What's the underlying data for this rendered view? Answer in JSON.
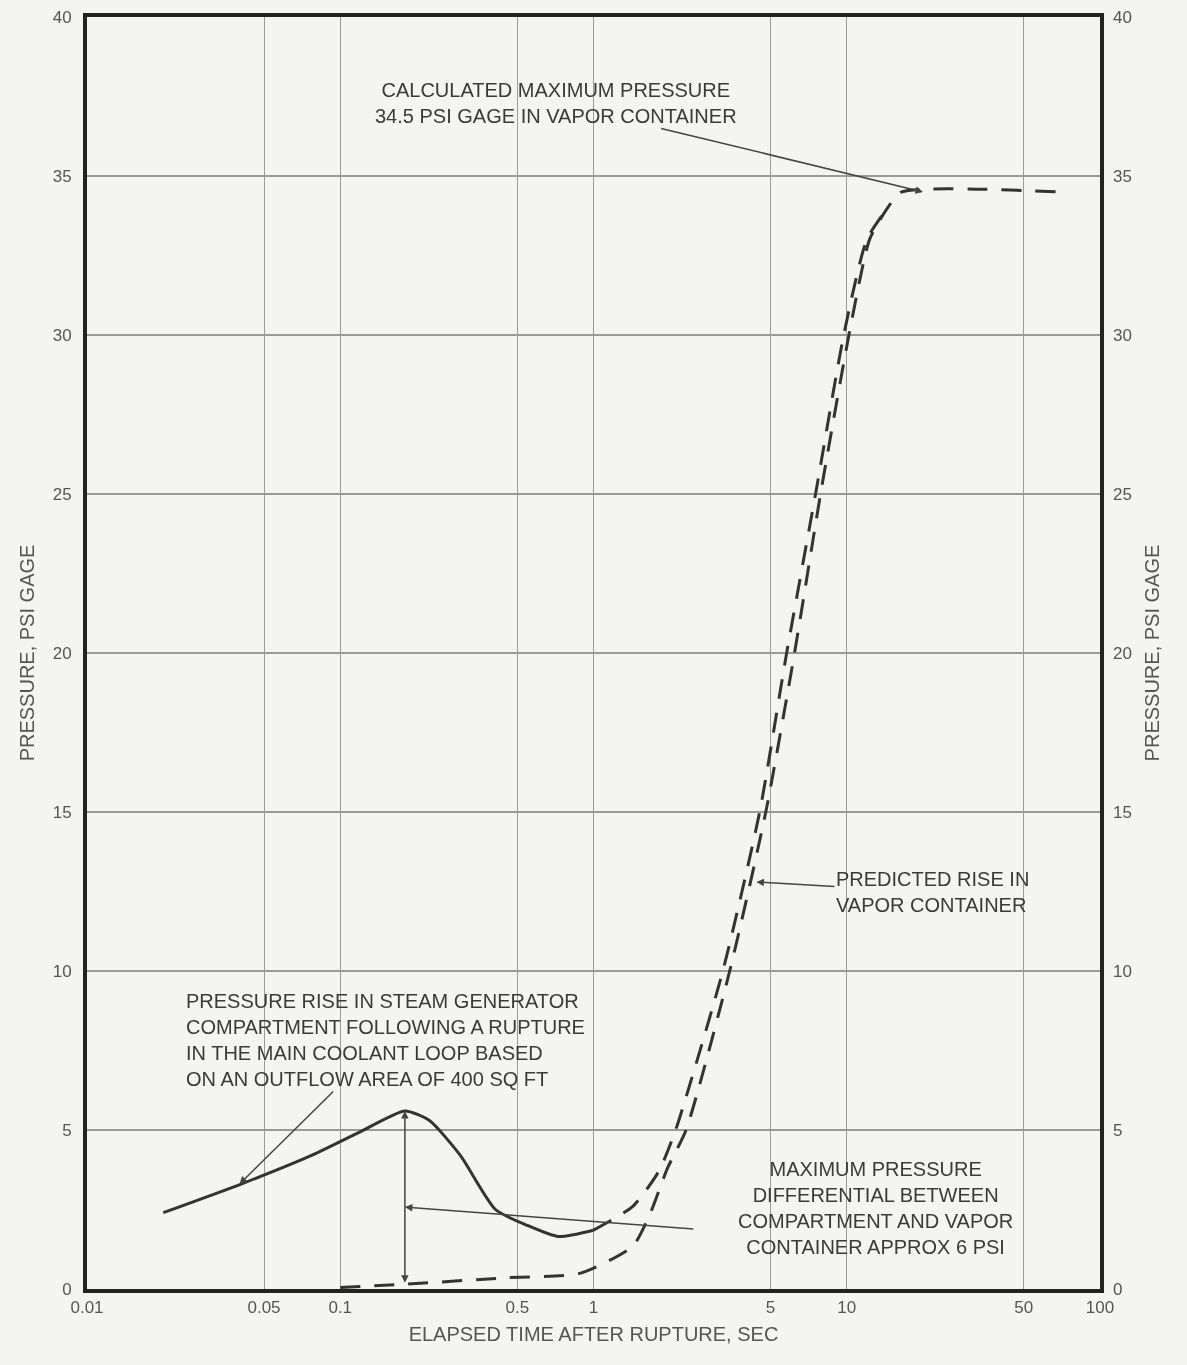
{
  "chart_data": {
    "type": "line",
    "xlabel": "ELAPSED TIME AFTER RUPTURE, SEC",
    "ylabel": "PRESSURE, PSI GAGE",
    "y2label": "PRESSURE, PSI GAGE",
    "log": "x",
    "xlim": [
      0.01,
      100
    ],
    "xticks": [
      0.01,
      0.05,
      0.1,
      0.5,
      1,
      5,
      10,
      50,
      100
    ],
    "ylim": [
      0,
      40
    ],
    "yticks": [
      0,
      5,
      10,
      15,
      20,
      25,
      30,
      35,
      40
    ],
    "y2lim": [
      0,
      40
    ],
    "y2ticks": [
      0,
      5,
      10,
      15,
      20,
      25,
      30,
      35,
      40
    ],
    "grid": true,
    "marker": "none",
    "series": [
      {
        "color": "#333333",
        "line_style": "solid",
        "x": [
          0.02,
          0.0406,
          0.077,
          0.117,
          0.18,
          0.225,
          0.298,
          0.41,
          0.548,
          0.727,
          1.0
        ],
        "values": [
          2.4,
          3.3,
          4.2,
          4.9,
          5.6,
          5.3,
          4.2,
          2.5,
          2.0,
          1.65,
          1.85
        ]
      },
      {
        "color": "#333333",
        "line_style": "dashed",
        "x": [
          1.0,
          1.43,
          1.81,
          2.11,
          3.24,
          4.53,
          5.79,
          7.53,
          9.73,
          12.0,
          14.5
        ],
        "values": [
          1.85,
          2.6,
          3.7,
          5,
          10,
          15,
          20,
          25,
          30,
          33,
          34
        ]
      },
      {
        "color": "#333333",
        "line_style": "dashed",
        "x": [
          0.1,
          0.18,
          0.445,
          0.89,
          1.43,
          1.66,
          1.96,
          2.32,
          3.45,
          4.79,
          6.22,
          7.88,
          10.2,
          12.3,
          14.5,
          16.5,
          68
        ],
        "values": [
          0.05,
          0.15,
          0.35,
          0.5,
          1.35,
          2.3,
          3.8,
          5,
          10,
          15,
          20,
          25,
          30,
          33,
          34,
          34.5,
          34.5
        ]
      }
    ],
    "annotations": [
      {
        "text": "CALCULATED MAXIMUM PRESSURE\n34.5 PSI GAGE IN VAPOR CONTAINER",
        "x": 20,
        "y": 34.5
      },
      {
        "text": "PREDICTED RISE IN\nVAPOR CONTAINER",
        "x": 4.4,
        "y": 12.8
      },
      {
        "text": "PRESSURE RISE IN STEAM GENERATOR\nCOMPARTMENT FOLLOWING A RUPTURE\nIN THE MAIN COOLANT LOOP BASED\nON AN OUTFLOW AREA OF 400 SQ FT",
        "x": 0.04,
        "y": 3.3
      },
      "MAXIMUM PRESSURE\nDIFFERENTIAL BETWEEN\nCOMPARTMENT AND VAPOR\nCONTAINER APPROX 6 PSI"
    ]
  }
}
